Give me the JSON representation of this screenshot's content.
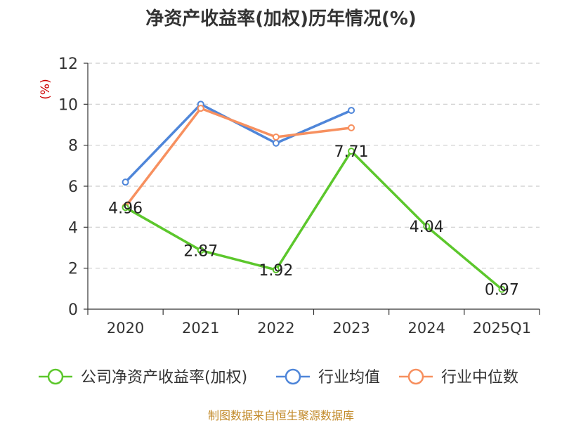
{
  "chart_data": {
    "type": "line",
    "title": "净资产收益率(加权)历年情况(%)",
    "ylabel": "(%)",
    "categories": [
      "2020",
      "2021",
      "2022",
      "2023",
      "2024",
      "2025Q1"
    ],
    "ylim": [
      0,
      12
    ],
    "yticks": [
      0,
      2,
      4,
      6,
      8,
      10,
      12
    ],
    "grid": true,
    "legend_position": "bottom",
    "series": [
      {
        "name": "公司净资产收益率(加权)",
        "color": "#5cc72c",
        "values": [
          4.96,
          2.87,
          1.92,
          7.71,
          4.04,
          0.97
        ],
        "labels": [
          "4.96",
          "2.87",
          "1.92",
          "7.71",
          "4.04",
          "0.97"
        ]
      },
      {
        "name": "行业均值",
        "color": "#4f86d9",
        "values": [
          6.2,
          10.0,
          8.1,
          9.7,
          null,
          null
        ]
      },
      {
        "name": "行业中位数",
        "color": "#f7905f",
        "values": [
          5.0,
          9.8,
          8.4,
          8.85,
          null,
          null
        ]
      }
    ]
  },
  "source_text": "制图数据来自恒生聚源数据库"
}
